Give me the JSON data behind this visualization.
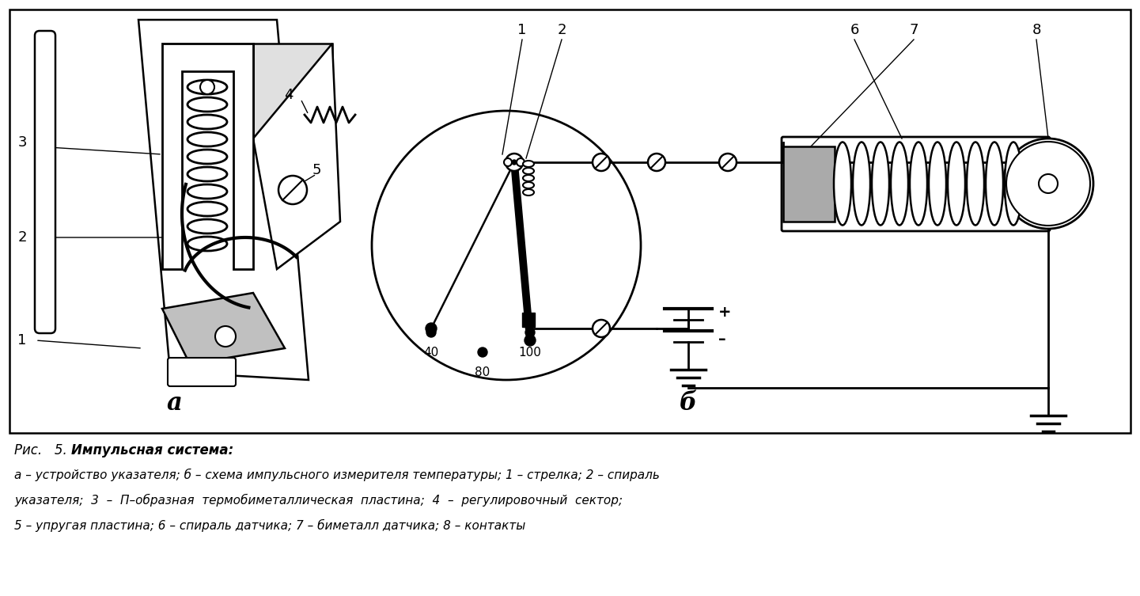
{
  "bg_color": "#ffffff",
  "fig_width": 14.41,
  "fig_height": 7.53,
  "caption_line1": "Рис.   5. Импульсная система:",
  "caption_line2": "а – устройство указателя; б – схема импульсного измерителя температуры; 1 – стрелка; 2 – спираль",
  "caption_line3": "указателя;  3  –  П–образная  термобиметаллическая  пластина;  4  –  регулировочный  сектор;",
  "caption_line4": "5 – упругая пластина; 6 – спираль датчика; 7 – биметалл датчика; 8 – контакты",
  "label_a": "а",
  "label_b": "б"
}
